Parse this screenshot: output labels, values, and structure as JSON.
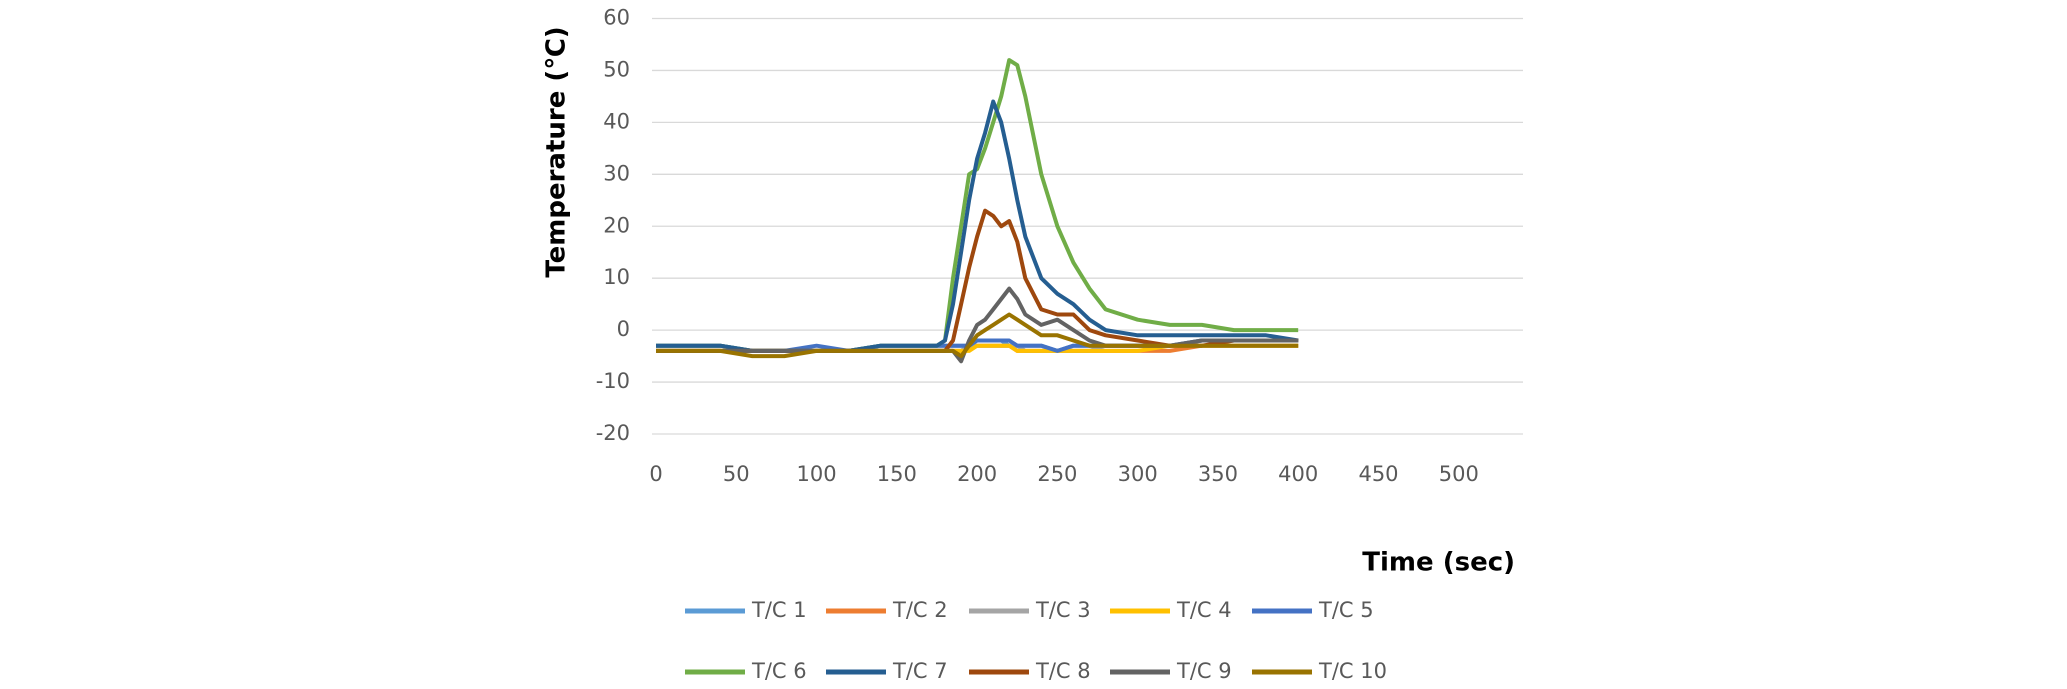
{
  "chart_data": {
    "type": "line",
    "x_label": "Time (sec)",
    "y_label": "Temperature (℃)",
    "x": [
      0,
      20,
      40,
      60,
      80,
      100,
      120,
      140,
      160,
      175,
      180,
      185,
      190,
      195,
      200,
      205,
      210,
      215,
      220,
      225,
      230,
      240,
      250,
      260,
      270,
      280,
      300,
      320,
      340,
      360,
      380,
      400
    ],
    "xlim": [
      0,
      540
    ],
    "xticks": [
      0,
      50,
      100,
      150,
      200,
      250,
      300,
      350,
      400,
      450,
      500
    ],
    "ylim": [
      -20,
      60
    ],
    "yticks": [
      -20,
      -10,
      0,
      10,
      20,
      30,
      40,
      50,
      60
    ],
    "grid": true,
    "series": [
      {
        "name": "T/C 1",
        "color": "#5b9bd5",
        "values": [
          -3,
          -3,
          -3,
          -4,
          -4,
          -4,
          -4,
          -3,
          -3,
          -3,
          -3,
          -3,
          -3,
          -3,
          -2,
          -2,
          -2,
          -2,
          -3,
          -3,
          -3,
          -3,
          -4,
          -3,
          -3,
          -3,
          -3,
          -3,
          -2,
          -2,
          -2,
          -2
        ]
      },
      {
        "name": "T/C 2",
        "color": "#ed7d31",
        "values": [
          -4,
          -4,
          -4,
          -4,
          -4,
          -4,
          -4,
          -4,
          -4,
          -4,
          -4,
          -4,
          -4,
          -3,
          -3,
          -3,
          -3,
          -3,
          -3,
          -4,
          -4,
          -4,
          -4,
          -4,
          -4,
          -4,
          -4,
          -4,
          -3,
          -3,
          -3,
          -3
        ]
      },
      {
        "name": "T/C 3",
        "color": "#a5a5a5",
        "values": [
          -4,
          -4,
          -4,
          -4,
          -4,
          -4,
          -4,
          -4,
          -4,
          -4,
          -4,
          -4,
          -4,
          -3,
          -3,
          -3,
          -3,
          -3,
          -3,
          -3,
          -4,
          -4,
          -4,
          -4,
          -4,
          -3,
          -3,
          -3,
          -3,
          -3,
          -3,
          -3
        ]
      },
      {
        "name": "T/C 4",
        "color": "#ffc000",
        "values": [
          -4,
          -4,
          -4,
          -4,
          -4,
          -4,
          -4,
          -4,
          -4,
          -4,
          -4,
          -4,
          -4,
          -4,
          -3,
          -3,
          -3,
          -3,
          -3,
          -4,
          -4,
          -4,
          -4,
          -4,
          -4,
          -4,
          -4,
          -3,
          -3,
          -3,
          -3,
          -3
        ]
      },
      {
        "name": "T/C 5",
        "color": "#4472c4",
        "values": [
          -3,
          -3,
          -3,
          -4,
          -4,
          -3,
          -4,
          -3,
          -3,
          -3,
          -3,
          -3,
          -3,
          -3,
          -2,
          -2,
          -2,
          -2,
          -2,
          -3,
          -3,
          -3,
          -4,
          -3,
          -3,
          -3,
          -3,
          -3,
          -2,
          -2,
          -2,
          -2
        ]
      },
      {
        "name": "T/C 6",
        "color": "#70ad47",
        "values": [
          -3,
          -3,
          -3,
          -4,
          -4,
          -4,
          -4,
          -3,
          -3,
          -3,
          -2,
          10,
          20,
          30,
          31,
          35,
          40,
          45,
          52,
          51,
          45,
          30,
          20,
          13,
          8,
          4,
          2,
          1,
          1,
          0,
          0,
          0
        ]
      },
      {
        "name": "T/C 7",
        "color": "#255e91",
        "values": [
          -3,
          -3,
          -3,
          -4,
          -4,
          -4,
          -4,
          -3,
          -3,
          -3,
          -2,
          5,
          15,
          25,
          33,
          38,
          44,
          40,
          33,
          25,
          18,
          10,
          7,
          5,
          2,
          0,
          -1,
          -1,
          -1,
          -1,
          -1,
          -2
        ]
      },
      {
        "name": "T/C 8",
        "color": "#9e480e",
        "values": [
          -4,
          -4,
          -4,
          -4,
          -4,
          -4,
          -4,
          -4,
          -4,
          -4,
          -4,
          -2,
          5,
          12,
          18,
          23,
          22,
          20,
          21,
          17,
          10,
          4,
          3,
          3,
          0,
          -1,
          -2,
          -3,
          -3,
          -2,
          -2,
          -2
        ]
      },
      {
        "name": "T/C 9",
        "color": "#636363",
        "values": [
          -4,
          -4,
          -4,
          -4,
          -4,
          -4,
          -4,
          -4,
          -4,
          -4,
          -4,
          -4,
          -6,
          -2,
          1,
          2,
          4,
          6,
          8,
          6,
          3,
          1,
          2,
          0,
          -2,
          -3,
          -3,
          -3,
          -2,
          -2,
          -2,
          -2
        ]
      },
      {
        "name": "T/C 10",
        "color": "#997300",
        "values": [
          -4,
          -4,
          -4,
          -5,
          -5,
          -4,
          -4,
          -4,
          -4,
          -4,
          -4,
          -4,
          -5,
          -3,
          -1,
          0,
          1,
          2,
          3,
          2,
          1,
          -1,
          -1,
          -2,
          -3,
          -3,
          -3,
          -3,
          -3,
          -3,
          -3,
          -3
        ]
      }
    ]
  }
}
